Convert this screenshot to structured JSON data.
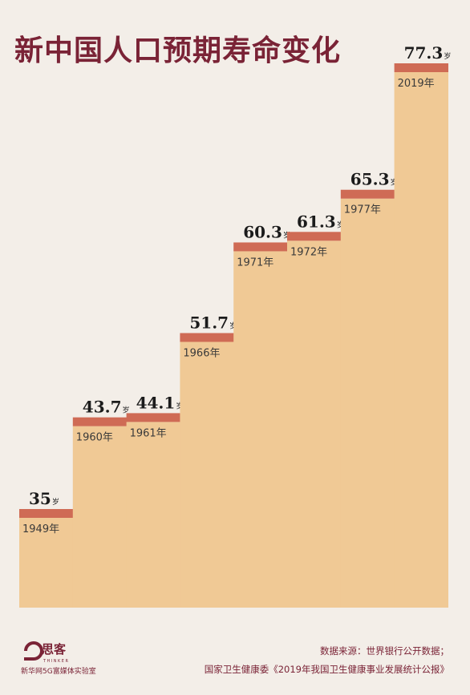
{
  "chart_data": {
    "type": "bar",
    "title": "新中国人口预期寿命变化",
    "unit": "岁",
    "categories": [
      "1949年",
      "1960年",
      "1961年",
      "1966年",
      "1971年",
      "1972年",
      "1977年",
      "2019年"
    ],
    "values": [
      35,
      43.7,
      44.1,
      51.7,
      60.3,
      61.3,
      65.3,
      77.3
    ],
    "value_labels": [
      "35",
      "43.7",
      "44.1",
      "51.7",
      "60.3",
      "61.3",
      "65.3",
      "77.3"
    ]
  },
  "colors": {
    "background": "#f3eee8",
    "bar_fill": "#f0c995",
    "bar_cap": "#cf6b55",
    "title": "#7a2336"
  },
  "footer": {
    "logo_text": "新华网5G富媒体实验室",
    "logo_sub": "THINKER",
    "source_line1": "数据来源：世界银行公开数据；",
    "source_line2": "国家卫生健康委《2019年我国卫生健康事业发展统计公报》"
  }
}
